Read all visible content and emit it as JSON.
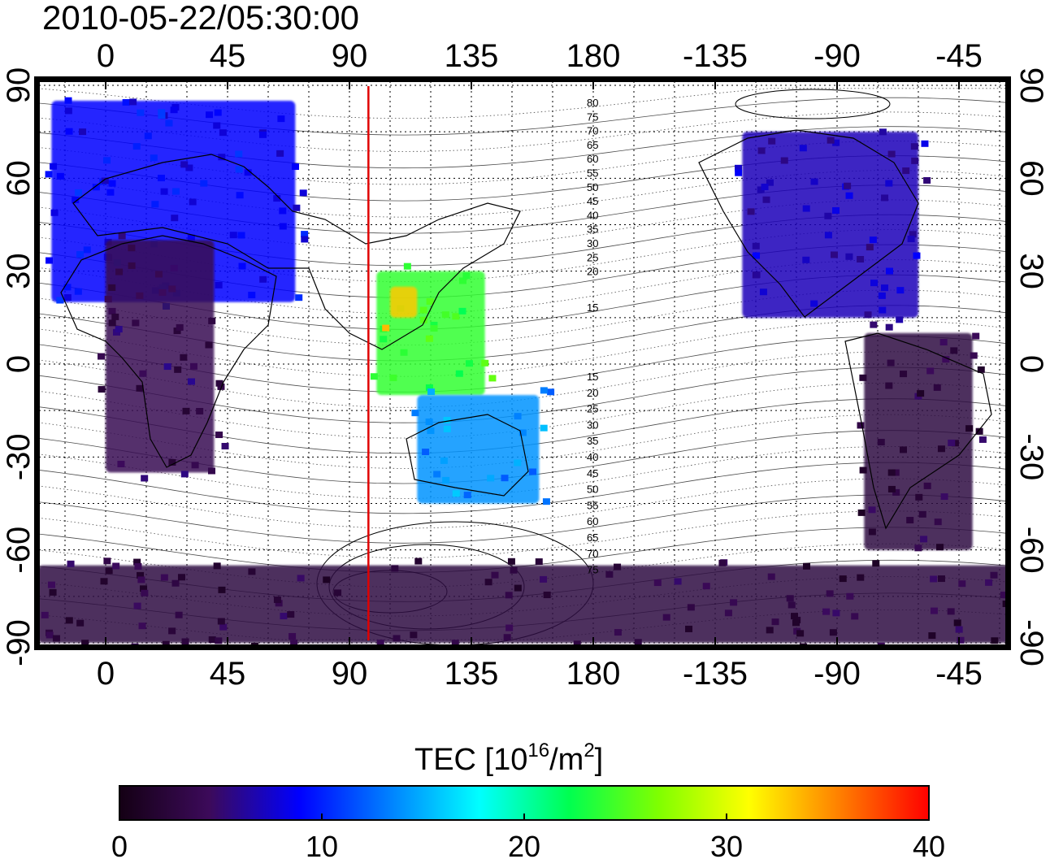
{
  "timestamp": "2010-05-22/05:30:00",
  "lon_ticks": [
    "0",
    "45",
    "90",
    "135",
    "180",
    "-135",
    "-90",
    "-45"
  ],
  "lat_ticks": [
    "90",
    "60",
    "30",
    "0",
    "-30",
    "-60",
    "-90"
  ],
  "marker_longitude": 97,
  "marker_color": "#e00000",
  "colorbar": {
    "title_main": "TEC  [10",
    "title_exp1": "16",
    "title_mid": "/m",
    "title_exp2": "2",
    "title_end": "]",
    "ticks": [
      "0",
      "10",
      "20",
      "30",
      "40"
    ],
    "stops": [
      "#140014",
      "#3c0a5a",
      "#0000ff",
      "#0080ff",
      "#00ffff",
      "#00ff50",
      "#80ff00",
      "#ffff00",
      "#ff8000",
      "#ff0000"
    ]
  },
  "contour_labels_north": [
    "80",
    "75",
    "70",
    "65",
    "60",
    "55",
    "50",
    "45",
    "40",
    "35",
    "30",
    "25",
    "20",
    "15"
  ],
  "contour_labels_south": [
    "15",
    "20",
    "25",
    "30",
    "35",
    "40",
    "45",
    "50",
    "55",
    "60",
    "65",
    "70",
    "75"
  ],
  "chart_data": {
    "type": "heatmap",
    "title": "2010-05-22/05:30:00",
    "quantity_label": "TEC [10^16/m^2]",
    "xlabel": "",
    "ylabel": "",
    "xlim": [
      -25,
      335
    ],
    "ylim": [
      -95,
      95
    ],
    "color_range": [
      0,
      40
    ],
    "grid": true,
    "regions": [
      {
        "lon": [
          -20,
          70
        ],
        "lat": [
          20,
          85
        ],
        "tec": 9
      },
      {
        "lon": [
          0,
          40
        ],
        "lat": [
          -35,
          40
        ],
        "tec": 4
      },
      {
        "lon": [
          100,
          140
        ],
        "lat": [
          -10,
          30
        ],
        "tec": 24
      },
      {
        "lon": [
          105,
          115
        ],
        "lat": [
          15,
          25
        ],
        "tec": 33
      },
      {
        "lon": [
          115,
          160
        ],
        "lat": [
          -45,
          -10
        ],
        "tec": 14
      },
      {
        "lon": [
          235,
          300
        ],
        "lat": [
          15,
          75
        ],
        "tec": 7
      },
      {
        "lon": [
          280,
          320
        ],
        "lat": [
          -60,
          10
        ],
        "tec": 3
      },
      {
        "lon": [
          -25,
          335
        ],
        "lat": [
          -90,
          -65
        ],
        "tec": 3
      }
    ]
  }
}
